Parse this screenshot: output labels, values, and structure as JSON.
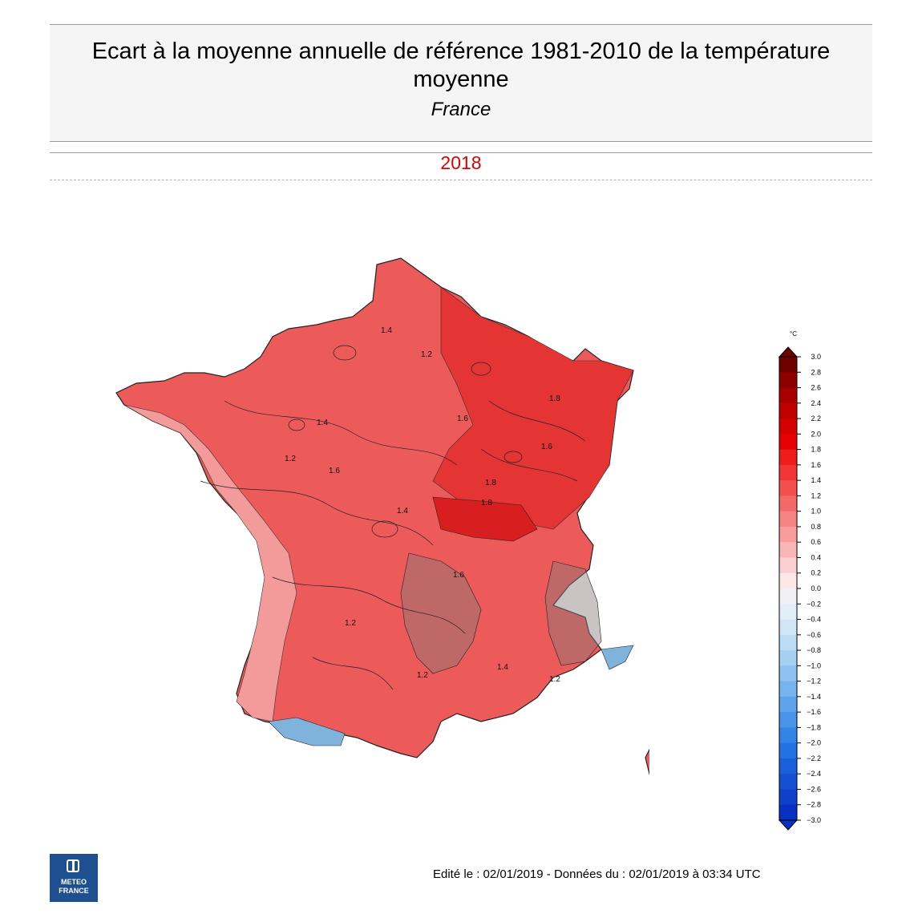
{
  "header": {
    "title": "Ecart à la moyenne annuelle de référence 1981-2010 de la température moyenne",
    "subtitle": "France",
    "year": "2018"
  },
  "legend": {
    "unit": "°C",
    "ticks": [
      "3.0",
      "2.8",
      "2.6",
      "2.4",
      "2.2",
      "2.0",
      "1.8",
      "1.6",
      "1.4",
      "1.2",
      "1.0",
      "0.8",
      "0.6",
      "0.4",
      "0.2",
      "0.0",
      "−0.2",
      "−0.4",
      "−0.6",
      "−0.8",
      "−1.0",
      "−1.2",
      "−1.4",
      "−1.6",
      "−1.8",
      "−2.0",
      "−2.2",
      "−2.4",
      "−2.6",
      "−2.8",
      "−3.0"
    ],
    "colors_high_to_low": [
      "#6e0000",
      "#8c0000",
      "#a80000",
      "#c20000",
      "#d50000",
      "#e60000",
      "#ee1c1c",
      "#f23636",
      "#f44e4e",
      "#f56868",
      "#f78282",
      "#f89c9c",
      "#fab6b6",
      "#fbd0d0",
      "#fde8e8",
      "#f0f0f4",
      "#e2eef8",
      "#d0e6f6",
      "#bcdcf4",
      "#a6d0f2",
      "#8ec2f0",
      "#76b4ee",
      "#5ea4ec",
      "#4894ea",
      "#3484e8",
      "#2272e4",
      "#1a60dc",
      "#1450d4",
      "#0e40cc",
      "#0830c4"
    ],
    "max_color": "#6e0000",
    "min_color": "#0830c4"
  },
  "map": {
    "contour_labels": [
      "1.4",
      "1.2",
      "1.4",
      "1.6",
      "1.8",
      "1.6",
      "1.8",
      "1.4",
      "1.6",
      "1.2",
      "1.2",
      "1.4",
      "1.6",
      "1.8",
      "1.2",
      "1.2"
    ],
    "colors": {
      "base": "#ec5a5a",
      "warm": "#e43434",
      "hot": "#d81e1e",
      "pale": "#f39a9a",
      "cool": "#7fb3dc",
      "gray": "#8a7a7a"
    }
  },
  "logo": {
    "line1": "METEO",
    "line2": "FRANCE",
    "icon": "meteo-france-logo-icon"
  },
  "footer": {
    "text": "Edité le : 02/01/2019 - Données du : 02/01/2019 à 03:34 UTC"
  }
}
